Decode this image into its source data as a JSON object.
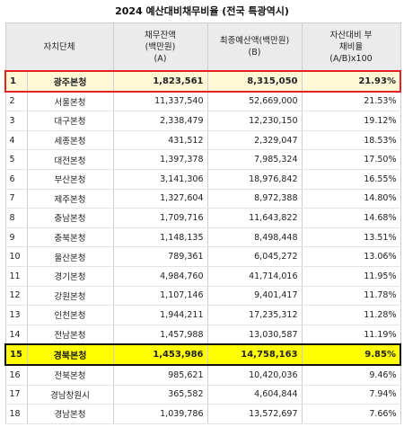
{
  "title": "2024 예산대비채무비율 (전국 특광역시)",
  "headers": {
    "name": "자치단체",
    "debt": [
      "채무잔액",
      "(백만원)",
      "(A)"
    ],
    "budget": [
      "최종예산액(백만원)",
      "(B)"
    ],
    "ratio": [
      "자산대비 부",
      "채비율",
      "(A/B)x100"
    ]
  },
  "rows": [
    {
      "rank": "1",
      "name": "광주본청",
      "debt": "1,823,561",
      "budget": "8,315,050",
      "ratio": "21.93%"
    },
    {
      "rank": "2",
      "name": "서울본청",
      "debt": "11,337,540",
      "budget": "52,669,000",
      "ratio": "21.53%"
    },
    {
      "rank": "3",
      "name": "대구본청",
      "debt": "2,338,479",
      "budget": "12,230,150",
      "ratio": "19.12%"
    },
    {
      "rank": "4",
      "name": "세종본청",
      "debt": "431,512",
      "budget": "2,329,047",
      "ratio": "18.53%"
    },
    {
      "rank": "5",
      "name": "대전본청",
      "debt": "1,397,378",
      "budget": "7,985,324",
      "ratio": "17.50%"
    },
    {
      "rank": "6",
      "name": "부산본청",
      "debt": "3,141,306",
      "budget": "18,976,842",
      "ratio": "16.55%"
    },
    {
      "rank": "7",
      "name": "제주본청",
      "debt": "1,327,604",
      "budget": "8,972,388",
      "ratio": "14.80%"
    },
    {
      "rank": "8",
      "name": "충남본청",
      "debt": "1,709,716",
      "budget": "11,643,822",
      "ratio": "14.68%"
    },
    {
      "rank": "9",
      "name": "충북본청",
      "debt": "1,148,135",
      "budget": "8,498,448",
      "ratio": "13.51%"
    },
    {
      "rank": "10",
      "name": "울산본청",
      "debt": "789,361",
      "budget": "6,045,272",
      "ratio": "13.06%"
    },
    {
      "rank": "11",
      "name": "경기본청",
      "debt": "4,984,760",
      "budget": "41,714,016",
      "ratio": "11.95%"
    },
    {
      "rank": "12",
      "name": "강원본청",
      "debt": "1,107,146",
      "budget": "9,401,417",
      "ratio": "11.78%"
    },
    {
      "rank": "13",
      "name": "인천본청",
      "debt": "1,944,211",
      "budget": "17,235,312",
      "ratio": "11.28%"
    },
    {
      "rank": "14",
      "name": "전남본청",
      "debt": "1,457,988",
      "budget": "13,030,587",
      "ratio": "11.19%"
    },
    {
      "rank": "15",
      "name": "경북본청",
      "debt": "1,453,986",
      "budget": "14,758,163",
      "ratio": "9.85%"
    },
    {
      "rank": "16",
      "name": "전북본청",
      "debt": "985,621",
      "budget": "10,420,036",
      "ratio": "9.46%"
    },
    {
      "rank": "17",
      "name": "경남창원시",
      "debt": "365,582",
      "budget": "4,604,844",
      "ratio": "7.94%"
    },
    {
      "rank": "18",
      "name": "경남본청",
      "debt": "1,039,786",
      "budget": "13,572,697",
      "ratio": "7.66%"
    }
  ],
  "highlights": {
    "red": "1",
    "yellow": "15"
  },
  "colors": {
    "red_border": "#e52222",
    "yellow_fill": "#ffff00",
    "header_bg": "#ebebeb"
  }
}
